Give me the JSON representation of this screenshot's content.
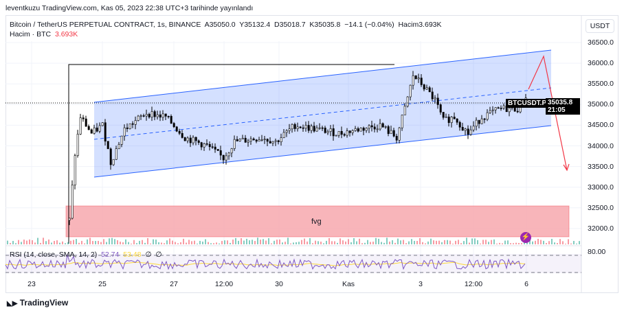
{
  "published": "leventkuzu TradingView.com, Kas 05, 2023 22:38 UTC+3 tarihinde yayınlandı",
  "legend": {
    "symbol": "Bitcoin / TetherUS PERPETUAL CONTRACT, 1s, BINANCE",
    "open": "A35050.0",
    "high": "Y35132.4",
    "low": "D35018.7",
    "close": "K35035.8",
    "change": "−14.1 (−0.04%)",
    "volume": "Hacim3.693K",
    "vol_label": "Hacim · BTC",
    "vol_value": "3.693K"
  },
  "currency": "USDT",
  "price_axis": [
    "36500.0",
    "36000.0",
    "35500.0",
    "35000.0",
    "34500.0",
    "34000.0",
    "33500.0",
    "33000.0",
    "32500.0",
    "32000.0"
  ],
  "symbol_tag": "BTCUSDT.P",
  "last_price": "35035.8",
  "countdown": "21:05",
  "fvg_label": "fvg",
  "rsi": {
    "label": "RSI (14, close, SMA, 14, 2)",
    "value": "52.74",
    "sma": "53.48",
    "v3": "∅",
    "v4": "∅",
    "level": "80.00"
  },
  "time_axis": [
    "23",
    "25",
    "27",
    "12:00",
    "30",
    "Kas",
    "3",
    "12:00",
    "6"
  ],
  "brand": "TradingView",
  "colors": {
    "up": "#089981",
    "down": "#f23645",
    "channel": "#2962ff",
    "fvg": "#f7a8ae",
    "rsi": "#7e57c2",
    "rsi_sma": "#fdd835"
  },
  "chart_data": {
    "type": "candlestick",
    "price_path": [
      [
        0,
        32200
      ],
      [
        2,
        33800
      ],
      [
        4,
        34700
      ],
      [
        8,
        34300
      ],
      [
        12,
        34500
      ],
      [
        15,
        33600
      ],
      [
        20,
        34400
      ],
      [
        28,
        34800
      ],
      [
        35,
        34700
      ],
      [
        42,
        34200
      ],
      [
        50,
        34000
      ],
      [
        56,
        33700
      ],
      [
        60,
        34100
      ],
      [
        70,
        34200
      ],
      [
        75,
        34100
      ],
      [
        82,
        34500
      ],
      [
        90,
        34400
      ],
      [
        98,
        34300
      ],
      [
        105,
        34400
      ],
      [
        113,
        34500
      ],
      [
        119,
        34200
      ],
      [
        122,
        34900
      ],
      [
        125,
        35700
      ],
      [
        128,
        35500
      ],
      [
        133,
        35100
      ],
      [
        136,
        34600
      ],
      [
        140,
        34700
      ],
      [
        145,
        34300
      ],
      [
        150,
        34700
      ],
      [
        157,
        34900
      ],
      [
        163,
        34900
      ],
      [
        166,
        35200
      ],
      [
        171,
        35100
      ],
      [
        174,
        34900
      ],
      [
        166.5,
        35035
      ]
    ],
    "ylim": [
      31700,
      36800
    ]
  }
}
